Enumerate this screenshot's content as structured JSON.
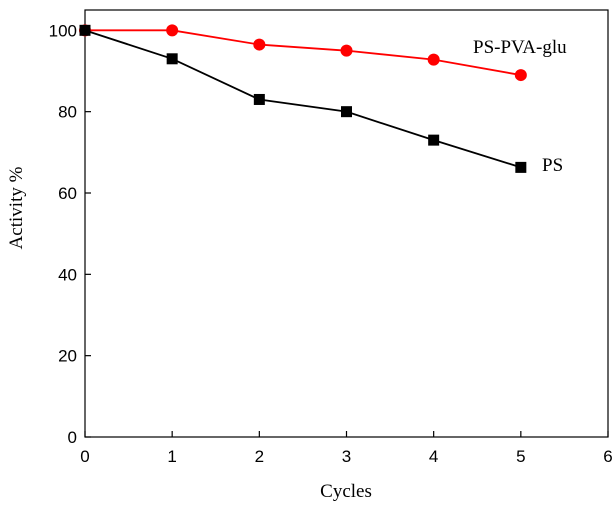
{
  "chart_data": {
    "type": "line",
    "title": "",
    "xlabel": "Cycles",
    "ylabel": "Activity %",
    "xlim": [
      0,
      6
    ],
    "ylim": [
      0,
      105
    ],
    "x_ticks": [
      0,
      1,
      2,
      3,
      4,
      5,
      6
    ],
    "y_ticks": [
      0,
      20,
      40,
      60,
      80,
      100
    ],
    "grid": false,
    "series": [
      {
        "name": "PS-PVA-glu",
        "color": "#ff0000",
        "marker": "circle",
        "x": [
          0,
          1,
          2,
          3,
          4,
          5
        ],
        "y": [
          100,
          100,
          96.5,
          95,
          92.8,
          89
        ]
      },
      {
        "name": "PS",
        "color": "#000000",
        "marker": "square",
        "x": [
          0,
          1,
          2,
          3,
          4,
          5
        ],
        "y": [
          100,
          93,
          83,
          80,
          73,
          66.3
        ]
      }
    ]
  }
}
